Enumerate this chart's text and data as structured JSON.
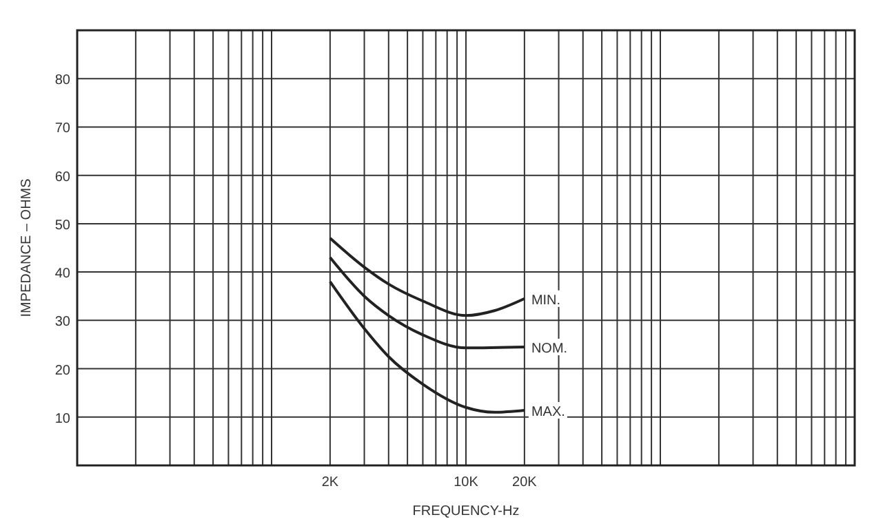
{
  "chart_data": {
    "type": "line",
    "xlabel": "FREQUENCY-Hz",
    "ylabel": "IMPEDANCE – OHMS",
    "log": "x",
    "xlim": [
      100,
      1000000
    ],
    "ylim": [
      0,
      90
    ],
    "xticks": [
      {
        "value": 100,
        "label": null
      },
      {
        "value": 200,
        "label": null
      },
      {
        "value": 300,
        "label": null
      },
      {
        "value": 400,
        "label": null
      },
      {
        "value": 500,
        "label": null
      },
      {
        "value": 600,
        "label": null
      },
      {
        "value": 700,
        "label": null
      },
      {
        "value": 800,
        "label": null
      },
      {
        "value": 900,
        "label": null
      },
      {
        "value": 1000,
        "label": null
      },
      {
        "value": 2000,
        "label": "2K"
      },
      {
        "value": 3000,
        "label": null
      },
      {
        "value": 4000,
        "label": null
      },
      {
        "value": 5000,
        "label": null
      },
      {
        "value": 6000,
        "label": null
      },
      {
        "value": 7000,
        "label": null
      },
      {
        "value": 8000,
        "label": null
      },
      {
        "value": 9000,
        "label": null
      },
      {
        "value": 10000,
        "label": "10K"
      },
      {
        "value": 20000,
        "label": "20K"
      },
      {
        "value": 30000,
        "label": null
      },
      {
        "value": 40000,
        "label": null
      },
      {
        "value": 50000,
        "label": null
      },
      {
        "value": 60000,
        "label": null
      },
      {
        "value": 70000,
        "label": null
      },
      {
        "value": 80000,
        "label": null
      },
      {
        "value": 90000,
        "label": null
      },
      {
        "value": 100000,
        "label": null
      },
      {
        "value": 200000,
        "label": null
      },
      {
        "value": 300000,
        "label": null
      },
      {
        "value": 400000,
        "label": null
      },
      {
        "value": 500000,
        "label": null
      },
      {
        "value": 600000,
        "label": null
      },
      {
        "value": 700000,
        "label": null
      },
      {
        "value": 800000,
        "label": null
      },
      {
        "value": 900000,
        "label": null
      },
      {
        "value": 1000000,
        "label": null
      }
    ],
    "yticks": [
      10,
      20,
      30,
      40,
      50,
      60,
      70,
      80
    ],
    "grid": true,
    "marker": "none",
    "line_style": "solid",
    "series": [
      {
        "name": "MIN.",
        "color": "#222222",
        "x": [
          2000,
          3000,
          4000,
          6000,
          10000,
          14000,
          20000
        ],
        "values": [
          47,
          41,
          37.5,
          34,
          31,
          32,
          34.5
        ]
      },
      {
        "name": "NOM.",
        "color": "#222222",
        "x": [
          2000,
          3000,
          4000,
          6000,
          10000,
          20000
        ],
        "values": [
          43,
          35,
          31,
          27,
          24.3,
          24.5
        ]
      },
      {
        "name": "MAX.",
        "color": "#222222",
        "x": [
          2000,
          3000,
          4000,
          6000,
          10000,
          14000,
          20000
        ],
        "values": [
          38,
          28.3,
          22.5,
          16.8,
          12,
          11,
          11.4
        ]
      }
    ]
  }
}
